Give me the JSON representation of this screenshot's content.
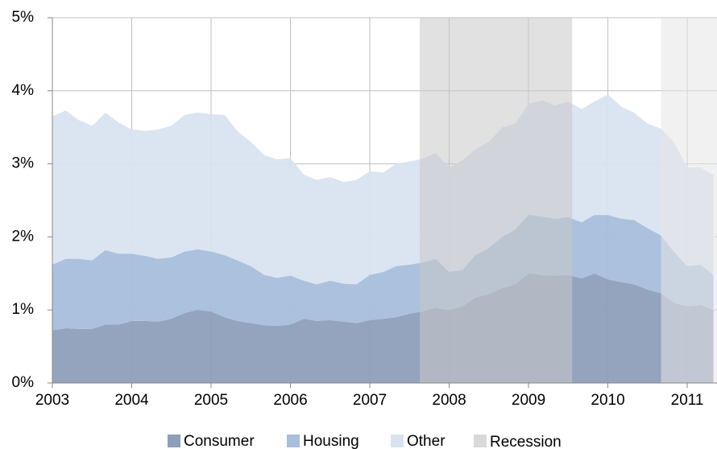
{
  "chart_data": {
    "type": "stacked_area",
    "x": [
      2003,
      2003.17,
      2003.33,
      2003.5,
      2003.67,
      2003.83,
      2004,
      2004.17,
      2004.33,
      2004.5,
      2004.67,
      2004.83,
      2005,
      2005.17,
      2005.33,
      2005.5,
      2005.67,
      2005.83,
      2006,
      2006.17,
      2006.33,
      2006.5,
      2006.67,
      2006.83,
      2007,
      2007.17,
      2007.33,
      2007.5,
      2007.67,
      2007.83,
      2008,
      2008.17,
      2008.33,
      2008.5,
      2008.67,
      2008.83,
      2009,
      2009.17,
      2009.33,
      2009.5,
      2009.67,
      2009.83,
      2010,
      2010.17,
      2010.33,
      2010.5,
      2010.67,
      2010.83,
      2011,
      2011.17,
      2011.33
    ],
    "series": [
      {
        "name": "Consumer",
        "color": "#8e9fba",
        "values": [
          0.72,
          0.75,
          0.74,
          0.74,
          0.8,
          0.8,
          0.85,
          0.85,
          0.84,
          0.88,
          0.96,
          1.0,
          0.98,
          0.9,
          0.85,
          0.82,
          0.79,
          0.78,
          0.8,
          0.88,
          0.85,
          0.86,
          0.84,
          0.82,
          0.86,
          0.88,
          0.9,
          0.95,
          0.98,
          1.03,
          1.0,
          1.05,
          1.17,
          1.22,
          1.3,
          1.35,
          1.5,
          1.48,
          1.47,
          1.48,
          1.43,
          1.5,
          1.42,
          1.38,
          1.35,
          1.28,
          1.23,
          1.1,
          1.05,
          1.07,
          1.0
        ]
      },
      {
        "name": "Housing",
        "color": "#a7bedc",
        "values": [
          0.9,
          0.95,
          0.96,
          0.94,
          1.02,
          0.97,
          0.92,
          0.89,
          0.86,
          0.84,
          0.84,
          0.83,
          0.82,
          0.85,
          0.83,
          0.78,
          0.69,
          0.66,
          0.67,
          0.52,
          0.5,
          0.54,
          0.52,
          0.53,
          0.62,
          0.64,
          0.7,
          0.67,
          0.67,
          0.67,
          0.52,
          0.5,
          0.58,
          0.63,
          0.7,
          0.75,
          0.8,
          0.8,
          0.78,
          0.79,
          0.77,
          0.8,
          0.88,
          0.87,
          0.88,
          0.84,
          0.79,
          0.7,
          0.55,
          0.55,
          0.48
        ]
      },
      {
        "name": "Other",
        "color": "#d9e3f0",
        "values": [
          2.03,
          2.03,
          1.9,
          1.84,
          1.88,
          1.8,
          1.7,
          1.71,
          1.77,
          1.8,
          1.87,
          1.87,
          1.88,
          1.92,
          1.77,
          1.7,
          1.64,
          1.62,
          1.61,
          1.45,
          1.43,
          1.42,
          1.39,
          1.43,
          1.42,
          1.36,
          1.4,
          1.41,
          1.42,
          1.45,
          1.43,
          1.5,
          1.45,
          1.45,
          1.5,
          1.45,
          1.52,
          1.59,
          1.55,
          1.58,
          1.55,
          1.55,
          1.65,
          1.53,
          1.47,
          1.43,
          1.46,
          1.5,
          1.35,
          1.33,
          1.37
        ]
      }
    ],
    "shading": {
      "name": "Recession",
      "color": "#d9d9d9",
      "periods": [
        {
          "start": 2007.63,
          "end": 2009.55,
          "color": "#c8c8c8"
        },
        {
          "start": 2010.67,
          "end": 2011.375,
          "color": "#e6e6e6"
        }
      ]
    },
    "xlim": [
      2003,
      2011.375
    ],
    "xticks": [
      2003,
      2004,
      2005,
      2006,
      2007,
      2008,
      2009,
      2010,
      2011
    ],
    "ylim": [
      0,
      5
    ],
    "yticks": [
      {
        "value": 0,
        "label": "0%"
      },
      {
        "value": 1,
        "label": "1%"
      },
      {
        "value": 2,
        "label": "2%"
      },
      {
        "value": 3,
        "label": "3%"
      },
      {
        "value": 4,
        "label": "4%"
      },
      {
        "value": 5,
        "label": "5%"
      }
    ],
    "grid": true
  }
}
